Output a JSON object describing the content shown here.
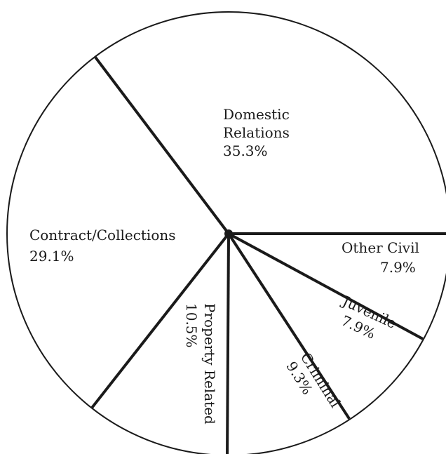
{
  "chart_data": {
    "type": "pie",
    "start_angle_deg": 0,
    "direction": "counterclockwise",
    "slices": [
      {
        "label": "Domestic\nRelations",
        "pct_label": "35.3%",
        "value": 35.3
      },
      {
        "label": "Contract/Collections",
        "pct_label": "29.1%",
        "value": 29.1
      },
      {
        "label": "Property Related",
        "pct_label": "10.5%",
        "value": 10.5
      },
      {
        "label": "Criminal",
        "pct_label": "9.3%",
        "value": 9.3
      },
      {
        "label": "Juvenile",
        "pct_label": "7.9%",
        "value": 7.9
      },
      {
        "label": "Other Civil",
        "pct_label": "7.9%",
        "value": 7.9
      }
    ]
  },
  "colors": {
    "fill": "#ffffff",
    "stroke": "#1a1a1a"
  }
}
